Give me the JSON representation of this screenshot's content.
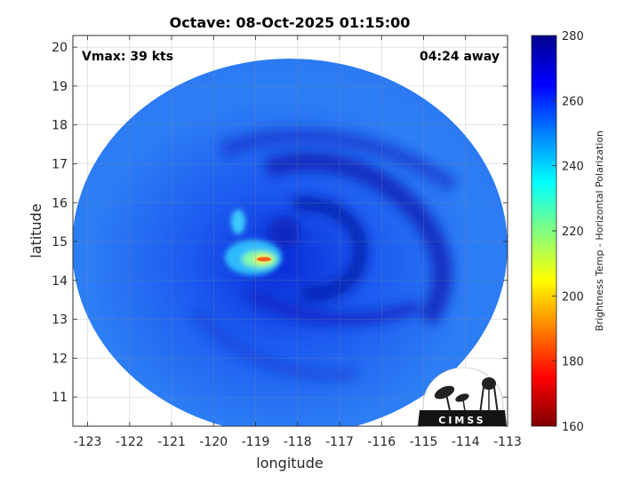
{
  "title": "Octave: 08-Oct-2025 01:15:00",
  "vmax_label": "Vmax: 39 kts",
  "time_label": "04:24 away",
  "logo_text": "CIMSS",
  "x_axis": {
    "label": "longitude",
    "ticks": [
      "-123",
      "-122",
      "-121",
      "-120",
      "-119",
      "-118",
      "-117",
      "-116",
      "-115",
      "-114",
      "-113"
    ],
    "range": [
      -123.35,
      -113
    ]
  },
  "y_axis": {
    "label": "latitude",
    "ticks": [
      "11",
      "12",
      "13",
      "14",
      "15",
      "16",
      "17",
      "18",
      "19",
      "20"
    ],
    "range": [
      10.25,
      20.3
    ]
  },
  "colorbar": {
    "label": "Brightness Temp - Horizontal Polarization",
    "ticks": [
      "160",
      "180",
      "200",
      "220",
      "240",
      "260",
      "280"
    ],
    "range": [
      160,
      280
    ],
    "colors": [
      "#7f0000",
      "#ff0000",
      "#ff8000",
      "#ffff00",
      "#80ff80",
      "#00ffff",
      "#0080ff",
      "#0000ff",
      "#00008f"
    ]
  },
  "storm_center": {
    "lon": -118.1,
    "lat": 15.0
  }
}
